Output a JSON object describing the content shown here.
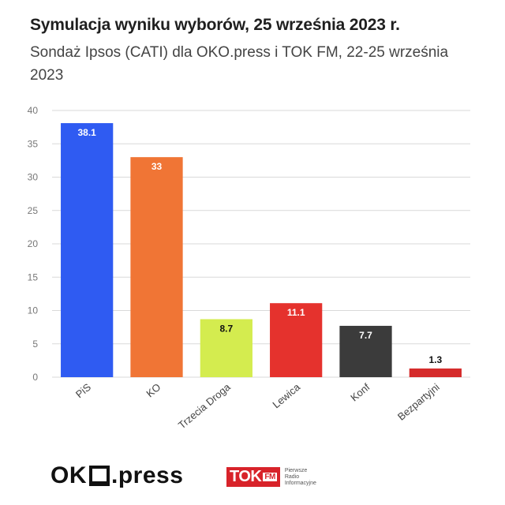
{
  "header": {
    "title": "Symulacja wyniku wyborów, 25 września 2023 r.",
    "subtitle": "Sondaż Ipsos (CATI) dla OKO.press i TOK FM, 22-25 września 2023"
  },
  "chart_data": {
    "type": "bar",
    "title": "Symulacja wyniku wyborów, 25 września 2023 r.",
    "subtitle": "Sondaż Ipsos (CATI) dla OKO.press i TOK FM, 22-25 września 2023",
    "categories": [
      "PiS",
      "KO",
      "Trzecia Droga",
      "Lewica",
      "Konf",
      "Bezpartyjni"
    ],
    "values": [
      38.1,
      33,
      8.7,
      11.1,
      7.7,
      1.3
    ],
    "data_labels": [
      "38.1",
      "33",
      "8.7",
      "11.1",
      "7.7",
      "1.3"
    ],
    "colors": [
      "#2f5bf2",
      "#f07535",
      "#d4ec4f",
      "#e5322d",
      "#3b3b3b",
      "#d52b2b"
    ],
    "label_colors": [
      "#ffffff",
      "#ffffff",
      "#111111",
      "#ffffff",
      "#ffffff",
      "#111111"
    ],
    "label_inside": [
      true,
      true,
      true,
      true,
      true,
      false
    ],
    "yticks": [
      "0",
      "5",
      "10",
      "15",
      "20",
      "25",
      "30",
      "35",
      "40"
    ],
    "ylim": [
      0,
      40
    ],
    "xlabel": "",
    "ylabel": "",
    "grid": true,
    "legend": "none"
  },
  "footer": {
    "oko_left": "OK",
    "oko_right": ".press",
    "tok_main": "TOK",
    "tok_fm": "FM",
    "tok_tag": [
      "Pierwsze",
      "Radio",
      "Informacyjne"
    ]
  }
}
